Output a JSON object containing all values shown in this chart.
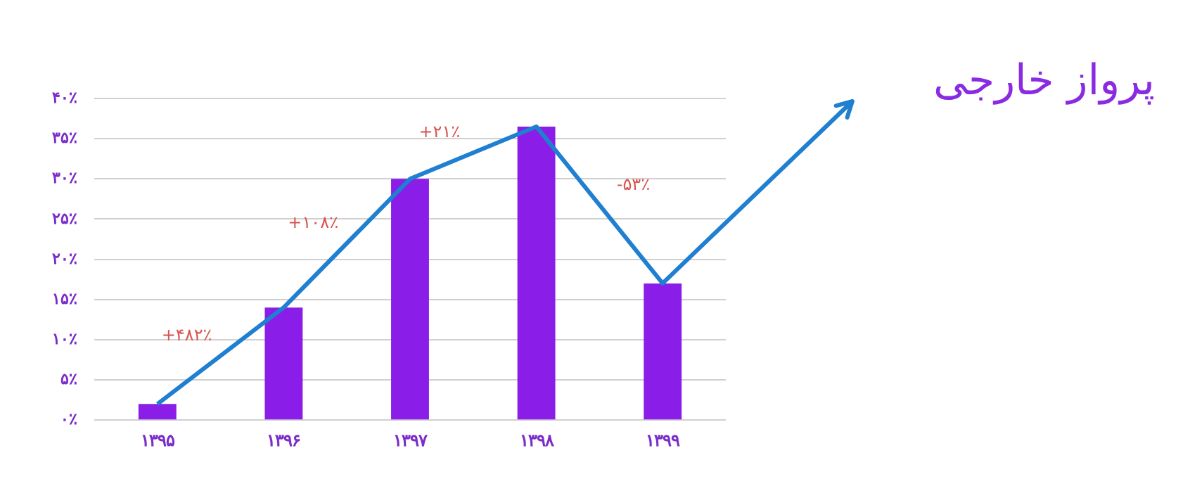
{
  "chart_data": {
    "type": "bar",
    "title": "پرواز خارجی",
    "categories": [
      "۱۳۹۵",
      "۱۳۹۶",
      "۱۳۹۷",
      "۱۳۹۸",
      "۱۳۹۹"
    ],
    "series": [
      {
        "color": "#8a1ee8",
        "values": [
          2,
          14,
          30,
          36.5,
          17
        ]
      },
      {
        "type": "line",
        "color": "#1f7fd0",
        "values": [
          2,
          14,
          30,
          36.5,
          17
        ]
      }
    ],
    "ylim": [
      0,
      40
    ],
    "yticks": [
      {
        "value": 0,
        "label": "۰٪"
      },
      {
        "value": 5,
        "label": "۵٪"
      },
      {
        "value": 10,
        "label": "۱۰٪"
      },
      {
        "value": 15,
        "label": "۱۵٪"
      },
      {
        "value": 20,
        "label": "۲۰٪"
      },
      {
        "value": 25,
        "label": "۲۵٪"
      },
      {
        "value": 30,
        "label": "۳۰٪"
      },
      {
        "value": 35,
        "label": "۳۵٪"
      },
      {
        "value": 40,
        "label": "۴۰٪"
      }
    ],
    "grid": "y",
    "legend": false,
    "marker": "none",
    "annotations": [
      "+۴۸۲٪",
      "+۱۰۸٪",
      "+۲۱٪",
      "-۵۳٪"
    ]
  }
}
